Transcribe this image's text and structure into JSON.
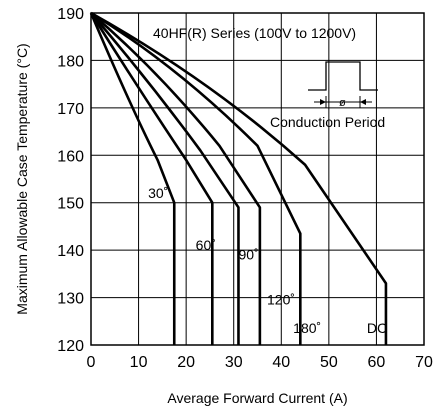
{
  "chart_data": {
    "type": "line",
    "title": "",
    "xlabel": "Average Forward Current (A)",
    "ylabel": "Maximum Allowable Case Temperature (°C)",
    "xlim": [
      0,
      70
    ],
    "ylim": [
      120,
      190
    ],
    "x_ticks": [
      "0",
      "10",
      "20",
      "30",
      "40",
      "50",
      "60",
      "70"
    ],
    "y_ticks": [
      "120",
      "130",
      "140",
      "150",
      "160",
      "170",
      "180",
      "190"
    ],
    "grid": true,
    "annotations": {
      "series_title": "40HF(R) Series (100V to 1200V)",
      "conduction_label": "Conduction Period",
      "phi_symbol": "ø"
    },
    "series": [
      {
        "name": "30˚",
        "label_pos": [
          12,
          151
        ],
        "x": [
          0,
          8,
          14,
          17.5,
          17.5
        ],
        "y": [
          190,
          171,
          159,
          150,
          120
        ]
      },
      {
        "name": "60˚",
        "label_pos": [
          22,
          140
        ],
        "x": [
          0,
          10,
          20,
          25.5,
          25.5
        ],
        "y": [
          190,
          174,
          159,
          150,
          120
        ]
      },
      {
        "name": "90˚",
        "label_pos": [
          31,
          138
        ],
        "x": [
          0,
          12,
          23,
          31,
          31
        ],
        "y": [
          190,
          176,
          161,
          149,
          120
        ]
      },
      {
        "name": "120˚",
        "label_pos": [
          37,
          128.5
        ],
        "x": [
          0,
          14,
          27,
          35.5,
          35.5
        ],
        "y": [
          190,
          178,
          162,
          149,
          120
        ]
      },
      {
        "name": "180˚",
        "label_pos": [
          42.5,
          122.5
        ],
        "x": [
          0,
          18,
          35,
          44,
          44
        ],
        "y": [
          190,
          179,
          162,
          143.5,
          120
        ]
      },
      {
        "name": "DC",
        "label_pos": [
          58,
          122.5
        ],
        "x": [
          0,
          25,
          45,
          62,
          62
        ],
        "y": [
          190,
          176,
          158,
          133,
          120
        ]
      }
    ]
  }
}
